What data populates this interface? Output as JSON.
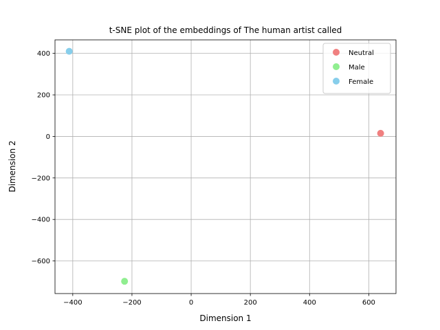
{
  "chart_data": {
    "type": "scatter",
    "title": "t-SNE plot of the embeddings of The human artist called",
    "xlabel": "Dimension 1",
    "ylabel": "Dimension 2",
    "xlim": [
      -460,
      692
    ],
    "ylim": [
      -757,
      465
    ],
    "xticks": [
      -400,
      -200,
      0,
      200,
      400,
      600
    ],
    "xtick_labels": [
      "−400",
      "−200",
      "0",
      "200",
      "400",
      "600"
    ],
    "yticks": [
      400,
      200,
      0,
      -200,
      -400,
      -600
    ],
    "ytick_labels": [
      "400",
      "200",
      "0",
      "−200",
      "−400",
      "−600"
    ],
    "grid": true,
    "legend_position": "top-right",
    "series": [
      {
        "name": "Neutral",
        "color": "#f08080",
        "points": [
          {
            "x": 640,
            "y": 15
          }
        ]
      },
      {
        "name": "Male",
        "color": "#90ee90",
        "points": [
          {
            "x": -225,
            "y": -698
          }
        ]
      },
      {
        "name": "Female",
        "color": "#87ceeb",
        "points": [
          {
            "x": -412,
            "y": 410
          }
        ]
      }
    ]
  }
}
